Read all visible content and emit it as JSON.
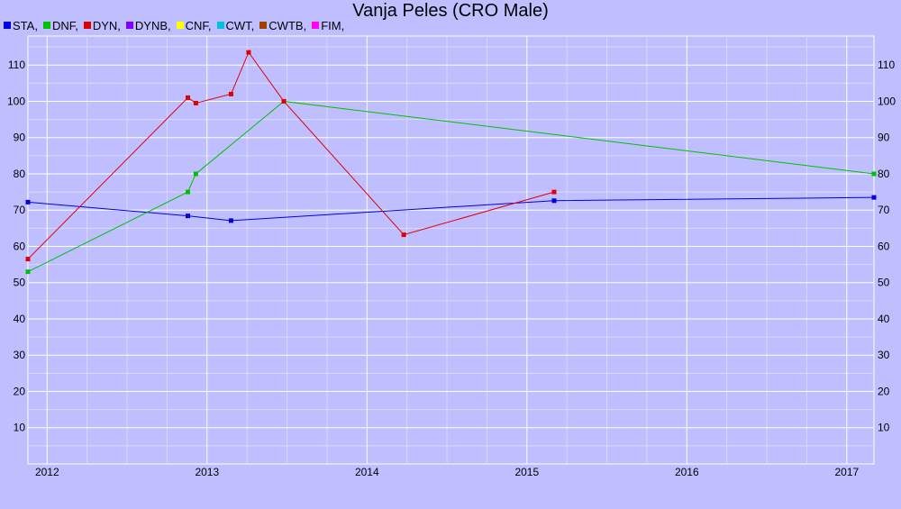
{
  "chart_data": {
    "type": "line",
    "title": "Vanja Peles (CRO Male)",
    "legend": [
      {
        "label": "STA,",
        "color": "#0000e0"
      },
      {
        "label": "DNF,",
        "color": "#00c000"
      },
      {
        "label": "DYN,",
        "color": "#e00000"
      },
      {
        "label": "DYNB,",
        "color": "#8000ff"
      },
      {
        "label": "CNF,",
        "color": "#ffff00"
      },
      {
        "label": "CWT,",
        "color": "#00c0e0"
      },
      {
        "label": "CWTB,",
        "color": "#a04000"
      },
      {
        "label": "FIM,",
        "color": "#ff00ff"
      }
    ],
    "xlim": [
      2011.88,
      2017.17
    ],
    "ylim": [
      0,
      118
    ],
    "x_ticks": [
      2012,
      2013,
      2014,
      2015,
      2016,
      2017
    ],
    "y_ticks": [
      10,
      20,
      30,
      40,
      50,
      60,
      70,
      80,
      90,
      100,
      110
    ],
    "grid": true,
    "series": [
      {
        "name": "STA",
        "color": "#0000e0",
        "x": [
          2011.88,
          2012.88,
          2013.15,
          2015.17,
          2017.17
        ],
        "y": [
          72.2,
          68.4,
          67.1,
          72.6,
          73.5
        ]
      },
      {
        "name": "DNF",
        "color": "#00c000",
        "x": [
          2011.88,
          2012.88,
          2012.93,
          2013.48,
          2017.17
        ],
        "y": [
          53,
          75,
          80,
          100,
          80
        ]
      },
      {
        "name": "DYN",
        "color": "#e00000",
        "x": [
          2011.88,
          2012.88,
          2012.93,
          2013.15,
          2013.26,
          2013.48,
          2014.23,
          2015.17
        ],
        "y": [
          56.5,
          101,
          99.5,
          102,
          113.5,
          100,
          63.2,
          75
        ]
      }
    ]
  }
}
